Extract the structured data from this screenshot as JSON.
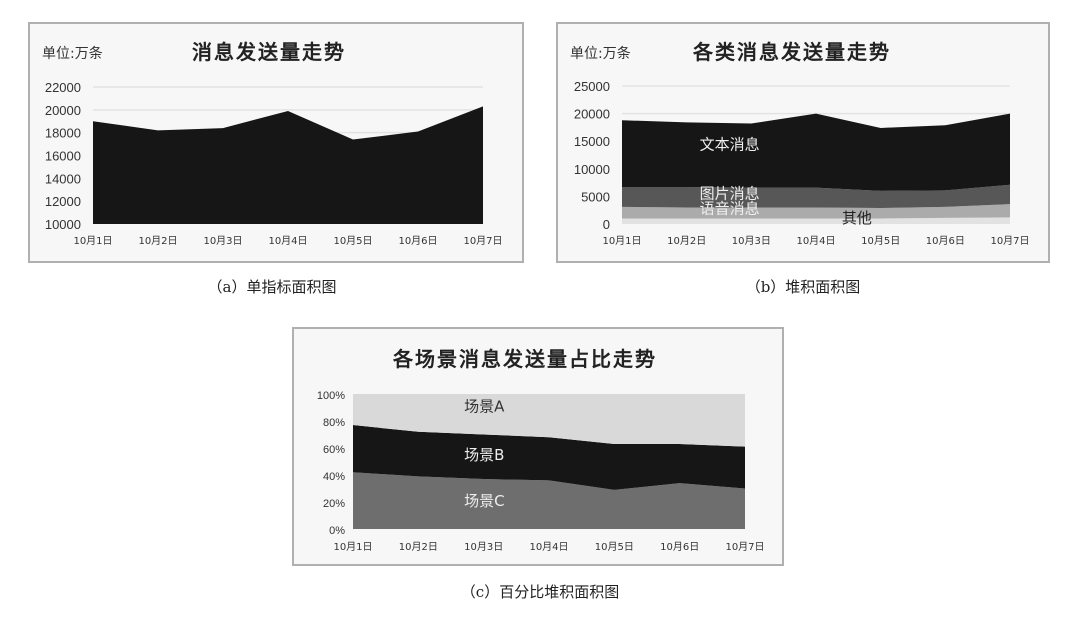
{
  "chart_data": [
    {
      "type": "area",
      "title": "消息发送量走势",
      "unit_label": "单位:万条",
      "caption": "（a）单指标面积图",
      "categories": [
        "10月1日",
        "10月2日",
        "10月3日",
        "10月4日",
        "10月5日",
        "10月6日",
        "10月7日"
      ],
      "ylim": [
        10000,
        22000
      ],
      "yticks": [
        "10000",
        "12000",
        "14000",
        "16000",
        "18000",
        "20000",
        "22000"
      ],
      "grid": true,
      "series": [
        {
          "values": [
            19000,
            18200,
            18400,
            19900,
            17400,
            18100,
            20300
          ],
          "color": "#161616"
        }
      ]
    },
    {
      "type": "stacked_area",
      "title": "各类消息发送量走势",
      "unit_label": "单位:万条",
      "caption": "（b）堆积面积图",
      "categories": [
        "10月1日",
        "10月2日",
        "10月3日",
        "10月4日",
        "10月5日",
        "10月6日",
        "10月7日"
      ],
      "ylim": [
        0,
        25000
      ],
      "yticks": [
        "0",
        "5000",
        "10000",
        "15000",
        "20000",
        "25000"
      ],
      "grid": true,
      "series": [
        {
          "name": "其他",
          "values": [
            1000,
            1000,
            1000,
            1000,
            1000,
            1100,
            1200
          ],
          "color": "#e2e2e2"
        },
        {
          "name": "语音消息",
          "values": [
            2100,
            2000,
            2000,
            2000,
            1900,
            2000,
            2400
          ],
          "color": "#ababab"
        },
        {
          "name": "图片消息",
          "values": [
            3600,
            3700,
            3600,
            3600,
            3100,
            3000,
            3500
          ],
          "color": "#575757"
        },
        {
          "name": "文本消息",
          "values": [
            12100,
            11700,
            11600,
            13400,
            11400,
            11800,
            12900
          ],
          "color": "#161616"
        }
      ]
    },
    {
      "type": "percent_stacked_area",
      "title": "各场景消息发送量占比走势",
      "caption": "（c）百分比堆积面积图",
      "categories": [
        "10月1日",
        "10月2日",
        "10月3日",
        "10月4日",
        "10月5日",
        "10月6日",
        "10月7日"
      ],
      "ylim": [
        0,
        100
      ],
      "yticks": [
        "0%",
        "20%",
        "40%",
        "60%",
        "80%",
        "100%"
      ],
      "grid": false,
      "series": [
        {
          "name": "场景C",
          "values": [
            42,
            39,
            37,
            36,
            29,
            34,
            30
          ],
          "color": "#6e6e6e"
        },
        {
          "name": "场景B",
          "values": [
            35,
            33,
            33,
            32,
            34,
            29,
            31
          ],
          "color": "#161616"
        },
        {
          "name": "场景A",
          "values": [
            23,
            28,
            30,
            32,
            37,
            37,
            39
          ],
          "color": "#d9d9d9"
        }
      ]
    }
  ]
}
